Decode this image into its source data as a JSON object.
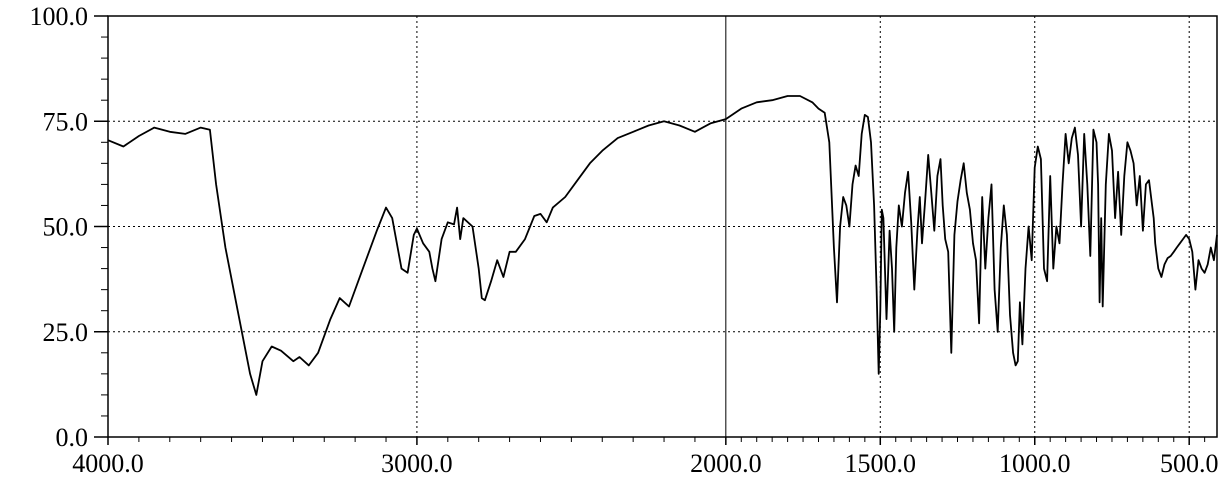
{
  "chart_data": {
    "type": "line",
    "title": "",
    "xlabel": "",
    "ylabel": "",
    "xlim": [
      4000,
      410
    ],
    "ylim": [
      0,
      100
    ],
    "x_reversed": true,
    "grid": true,
    "x_ticks": [
      {
        "value": 4000,
        "label": "4000.0"
      },
      {
        "value": 3000,
        "label": "3000.0"
      },
      {
        "value": 2000,
        "label": "2000.0"
      },
      {
        "value": 1500,
        "label": "1500.0"
      },
      {
        "value": 1000,
        "label": "1000.0"
      },
      {
        "value": 500,
        "label": "500.0"
      }
    ],
    "y_ticks": [
      {
        "value": 0,
        "label": "0.0"
      },
      {
        "value": 25,
        "label": "25.0"
      },
      {
        "value": 50,
        "label": "50.0"
      },
      {
        "value": 75,
        "label": "75.0"
      },
      {
        "value": 100,
        "label": "100.0"
      }
    ],
    "series": [
      {
        "color": "#000000",
        "x": [
          4000,
          3950,
          3900,
          3850,
          3800,
          3750,
          3700,
          3670,
          3650,
          3620,
          3580,
          3540,
          3520,
          3500,
          3470,
          3440,
          3400,
          3380,
          3350,
          3320,
          3280,
          3250,
          3220,
          3180,
          3130,
          3100,
          3080,
          3050,
          3030,
          3010,
          3000,
          2980,
          2960,
          2950,
          2940,
          2920,
          2900,
          2880,
          2870,
          2860,
          2850,
          2820,
          2800,
          2790,
          2780,
          2760,
          2740,
          2720,
          2700,
          2680,
          2650,
          2620,
          2600,
          2580,
          2560,
          2520,
          2480,
          2440,
          2400,
          2350,
          2300,
          2250,
          2200,
          2150,
          2100,
          2050,
          2000,
          1950,
          1900,
          1850,
          1800,
          1760,
          1720,
          1700,
          1680,
          1665,
          1650,
          1640,
          1630,
          1620,
          1610,
          1600,
          1590,
          1580,
          1570,
          1560,
          1550,
          1540,
          1530,
          1520,
          1512,
          1505,
          1500,
          1495,
          1490,
          1480,
          1470,
          1462,
          1455,
          1448,
          1440,
          1430,
          1420,
          1410,
          1400,
          1390,
          1380,
          1372,
          1365,
          1355,
          1345,
          1335,
          1325,
          1315,
          1305,
          1298,
          1290,
          1280,
          1270,
          1260,
          1250,
          1240,
          1230,
          1220,
          1210,
          1200,
          1190,
          1180,
          1170,
          1160,
          1150,
          1140,
          1130,
          1120,
          1110,
          1100,
          1090,
          1080,
          1070,
          1062,
          1055,
          1048,
          1040,
          1030,
          1020,
          1010,
          1000,
          990,
          980,
          970,
          960,
          950,
          940,
          930,
          920,
          910,
          900,
          890,
          880,
          870,
          860,
          850,
          840,
          830,
          820,
          810,
          800,
          795,
          790,
          785,
          780,
          770,
          760,
          750,
          740,
          730,
          720,
          710,
          700,
          690,
          680,
          670,
          660,
          650,
          640,
          630,
          620,
          615,
          610,
          600,
          590,
          580,
          570,
          560,
          550,
          540,
          530,
          520,
          510,
          500,
          490,
          480,
          470,
          460,
          450,
          440,
          430,
          420,
          410
        ],
        "y": [
          70.5,
          69,
          71.5,
          73.5,
          72.5,
          72,
          73.5,
          73,
          60,
          45,
          30,
          15,
          10,
          18,
          21.5,
          20.5,
          18,
          19,
          17,
          20,
          28,
          33,
          31,
          39,
          49,
          54.5,
          52,
          40,
          39,
          48,
          49.5,
          46,
          44,
          40,
          37,
          47,
          51,
          50.5,
          54.5,
          47,
          52,
          50,
          40,
          33,
          32.5,
          37,
          42,
          38,
          44,
          44,
          47,
          52.5,
          53,
          51,
          54.5,
          57,
          61,
          65,
          68,
          71,
          72.5,
          74,
          75,
          74,
          72.5,
          74.5,
          75.5,
          78,
          79.5,
          80,
          81,
          81,
          79.5,
          78,
          77,
          70,
          45,
          32,
          50,
          57,
          55,
          50,
          60,
          64.5,
          62,
          72,
          76.5,
          76,
          70,
          55,
          35,
          15,
          30,
          54,
          52,
          28,
          49,
          40,
          25,
          45,
          55,
          50,
          58,
          63,
          51,
          35,
          49,
          57,
          46,
          56,
          67,
          58,
          49,
          62,
          66,
          55,
          47,
          44,
          20,
          48,
          56,
          61,
          65,
          58,
          54,
          46,
          42,
          27,
          57,
          40,
          52,
          60,
          35,
          25,
          45,
          55,
          48,
          29,
          20,
          17,
          18,
          32,
          22,
          40,
          50,
          42,
          64,
          69,
          66,
          40,
          37,
          62,
          40,
          50,
          46,
          60,
          72,
          65,
          71,
          73.5,
          67,
          50,
          72,
          60,
          43,
          73,
          70,
          60,
          32,
          52,
          31,
          60,
          72,
          68,
          52,
          63,
          48,
          62,
          70,
          68,
          65,
          55,
          62,
          49,
          60,
          61,
          55,
          52,
          46,
          40,
          38,
          41,
          42.5,
          43,
          44,
          45,
          46,
          47,
          48,
          47,
          44,
          35,
          42,
          40,
          39,
          41,
          45,
          42,
          48
        ]
      }
    ]
  }
}
